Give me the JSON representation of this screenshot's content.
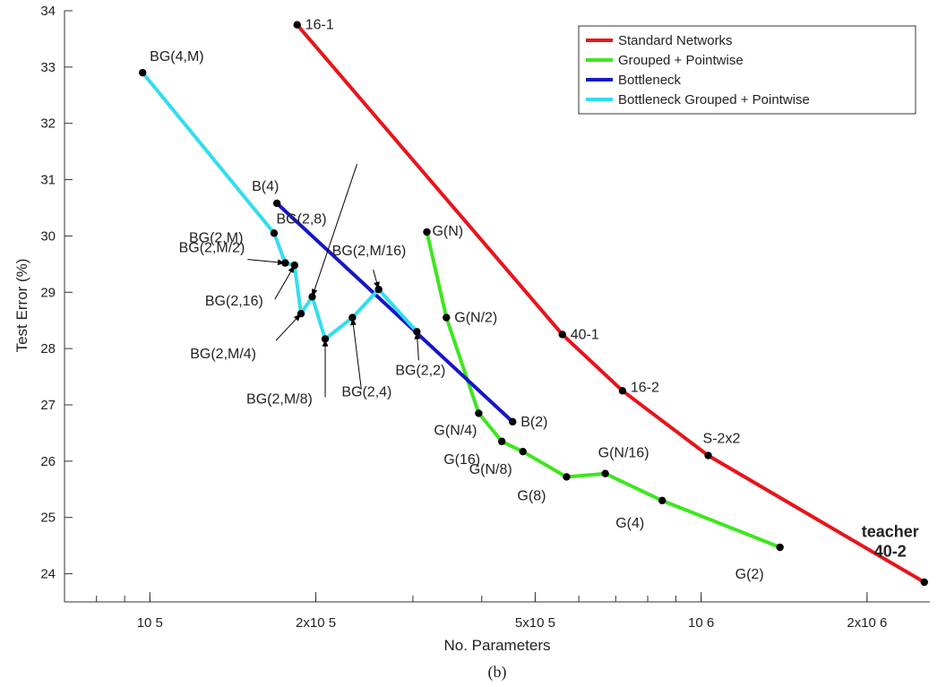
{
  "chart_data": {
    "type": "line",
    "xlabel": "No. Parameters",
    "ylabel": "Test Error (%)",
    "caption": "(b)",
    "xscale": "log",
    "xlim": [
      70000,
      2600000
    ],
    "ylim": [
      23.5,
      34
    ],
    "grid": false,
    "legend_position": "top-right",
    "x_ticks": [
      {
        "value": 100000,
        "label": "10 5"
      },
      {
        "value": 200000,
        "label": "2x10 5"
      },
      {
        "value": 500000,
        "label": "5x10 5"
      },
      {
        "value": 1000000,
        "label": "10 6"
      },
      {
        "value": 2000000,
        "label": "2x10 6"
      }
    ],
    "y_ticks": [
      {
        "value": 24,
        "label": "24"
      },
      {
        "value": 25,
        "label": "25"
      },
      {
        "value": 26,
        "label": "26"
      },
      {
        "value": 27,
        "label": "27"
      },
      {
        "value": 28,
        "label": "28"
      },
      {
        "value": 29,
        "label": "29"
      },
      {
        "value": 30,
        "label": "30"
      },
      {
        "value": 31,
        "label": "31"
      },
      {
        "value": 32,
        "label": "32"
      },
      {
        "value": 33,
        "label": "33"
      },
      {
        "value": 34,
        "label": "34"
      }
    ],
    "series": [
      {
        "name": "Standard Networks",
        "color": "#e8141b",
        "points": [
          {
            "x": 185000,
            "y": 33.75,
            "label": "16-1"
          },
          {
            "x": 560000,
            "y": 28.25,
            "label": "40-1"
          },
          {
            "x": 720000,
            "y": 27.25,
            "label": "16-2"
          },
          {
            "x": 1030000,
            "y": 26.1,
            "label": "S-2x2"
          },
          {
            "x": 2540000,
            "y": 23.85,
            "label": ""
          }
        ]
      },
      {
        "name": "Grouped + Pointwise",
        "color": "#3ee620",
        "points": [
          {
            "x": 318000,
            "y": 30.07,
            "label": "G(N)"
          },
          {
            "x": 345000,
            "y": 28.55,
            "label": "G(N/2)"
          },
          {
            "x": 395000,
            "y": 26.85,
            "label": "G(N/4)"
          },
          {
            "x": 435000,
            "y": 26.35,
            "label": "G(16)"
          },
          {
            "x": 475000,
            "y": 26.17,
            "label": "G(N/8)"
          },
          {
            "x": 570000,
            "y": 25.72,
            "label": "G(8)"
          },
          {
            "x": 670000,
            "y": 25.78,
            "label": "G(N/16)"
          },
          {
            "x": 850000,
            "y": 25.3,
            "label": "G(4)"
          },
          {
            "x": 1390000,
            "y": 24.47,
            "label": "G(2)"
          }
        ]
      },
      {
        "name": "Bottleneck",
        "color": "#1616c8",
        "points": [
          {
            "x": 170000,
            "y": 30.58,
            "label": "B(4)"
          },
          {
            "x": 455000,
            "y": 26.7,
            "label": "B(2)"
          }
        ]
      },
      {
        "name": "Bottleneck Grouped + Pointwise",
        "color": "#33ddee",
        "points": [
          {
            "x": 97000,
            "y": 32.9,
            "label": "BG(4,M)"
          },
          {
            "x": 168000,
            "y": 30.05,
            "label": "BG(2,M)"
          },
          {
            "x": 176000,
            "y": 29.52,
            "label": "BG(2,M/2)"
          },
          {
            "x": 183000,
            "y": 29.48,
            "label": "BG(2,16)"
          },
          {
            "x": 188000,
            "y": 28.62,
            "label": "BG(2,M/4)"
          },
          {
            "x": 197000,
            "y": 28.92,
            "label": "BG(2,8)"
          },
          {
            "x": 208000,
            "y": 28.17,
            "label": "BG(2,M/8)"
          },
          {
            "x": 233000,
            "y": 28.55,
            "label": "BG(2,4)"
          },
          {
            "x": 260000,
            "y": 29.05,
            "label": "BG(2,M/16)"
          },
          {
            "x": 305000,
            "y": 28.3,
            "label": "BG(2,2)"
          }
        ]
      }
    ],
    "annotations": [
      {
        "text": "teacher",
        "x": 2540000,
        "y": 24.75
      },
      {
        "text": "40-2",
        "x": 2540000,
        "y": 24.4
      }
    ]
  }
}
